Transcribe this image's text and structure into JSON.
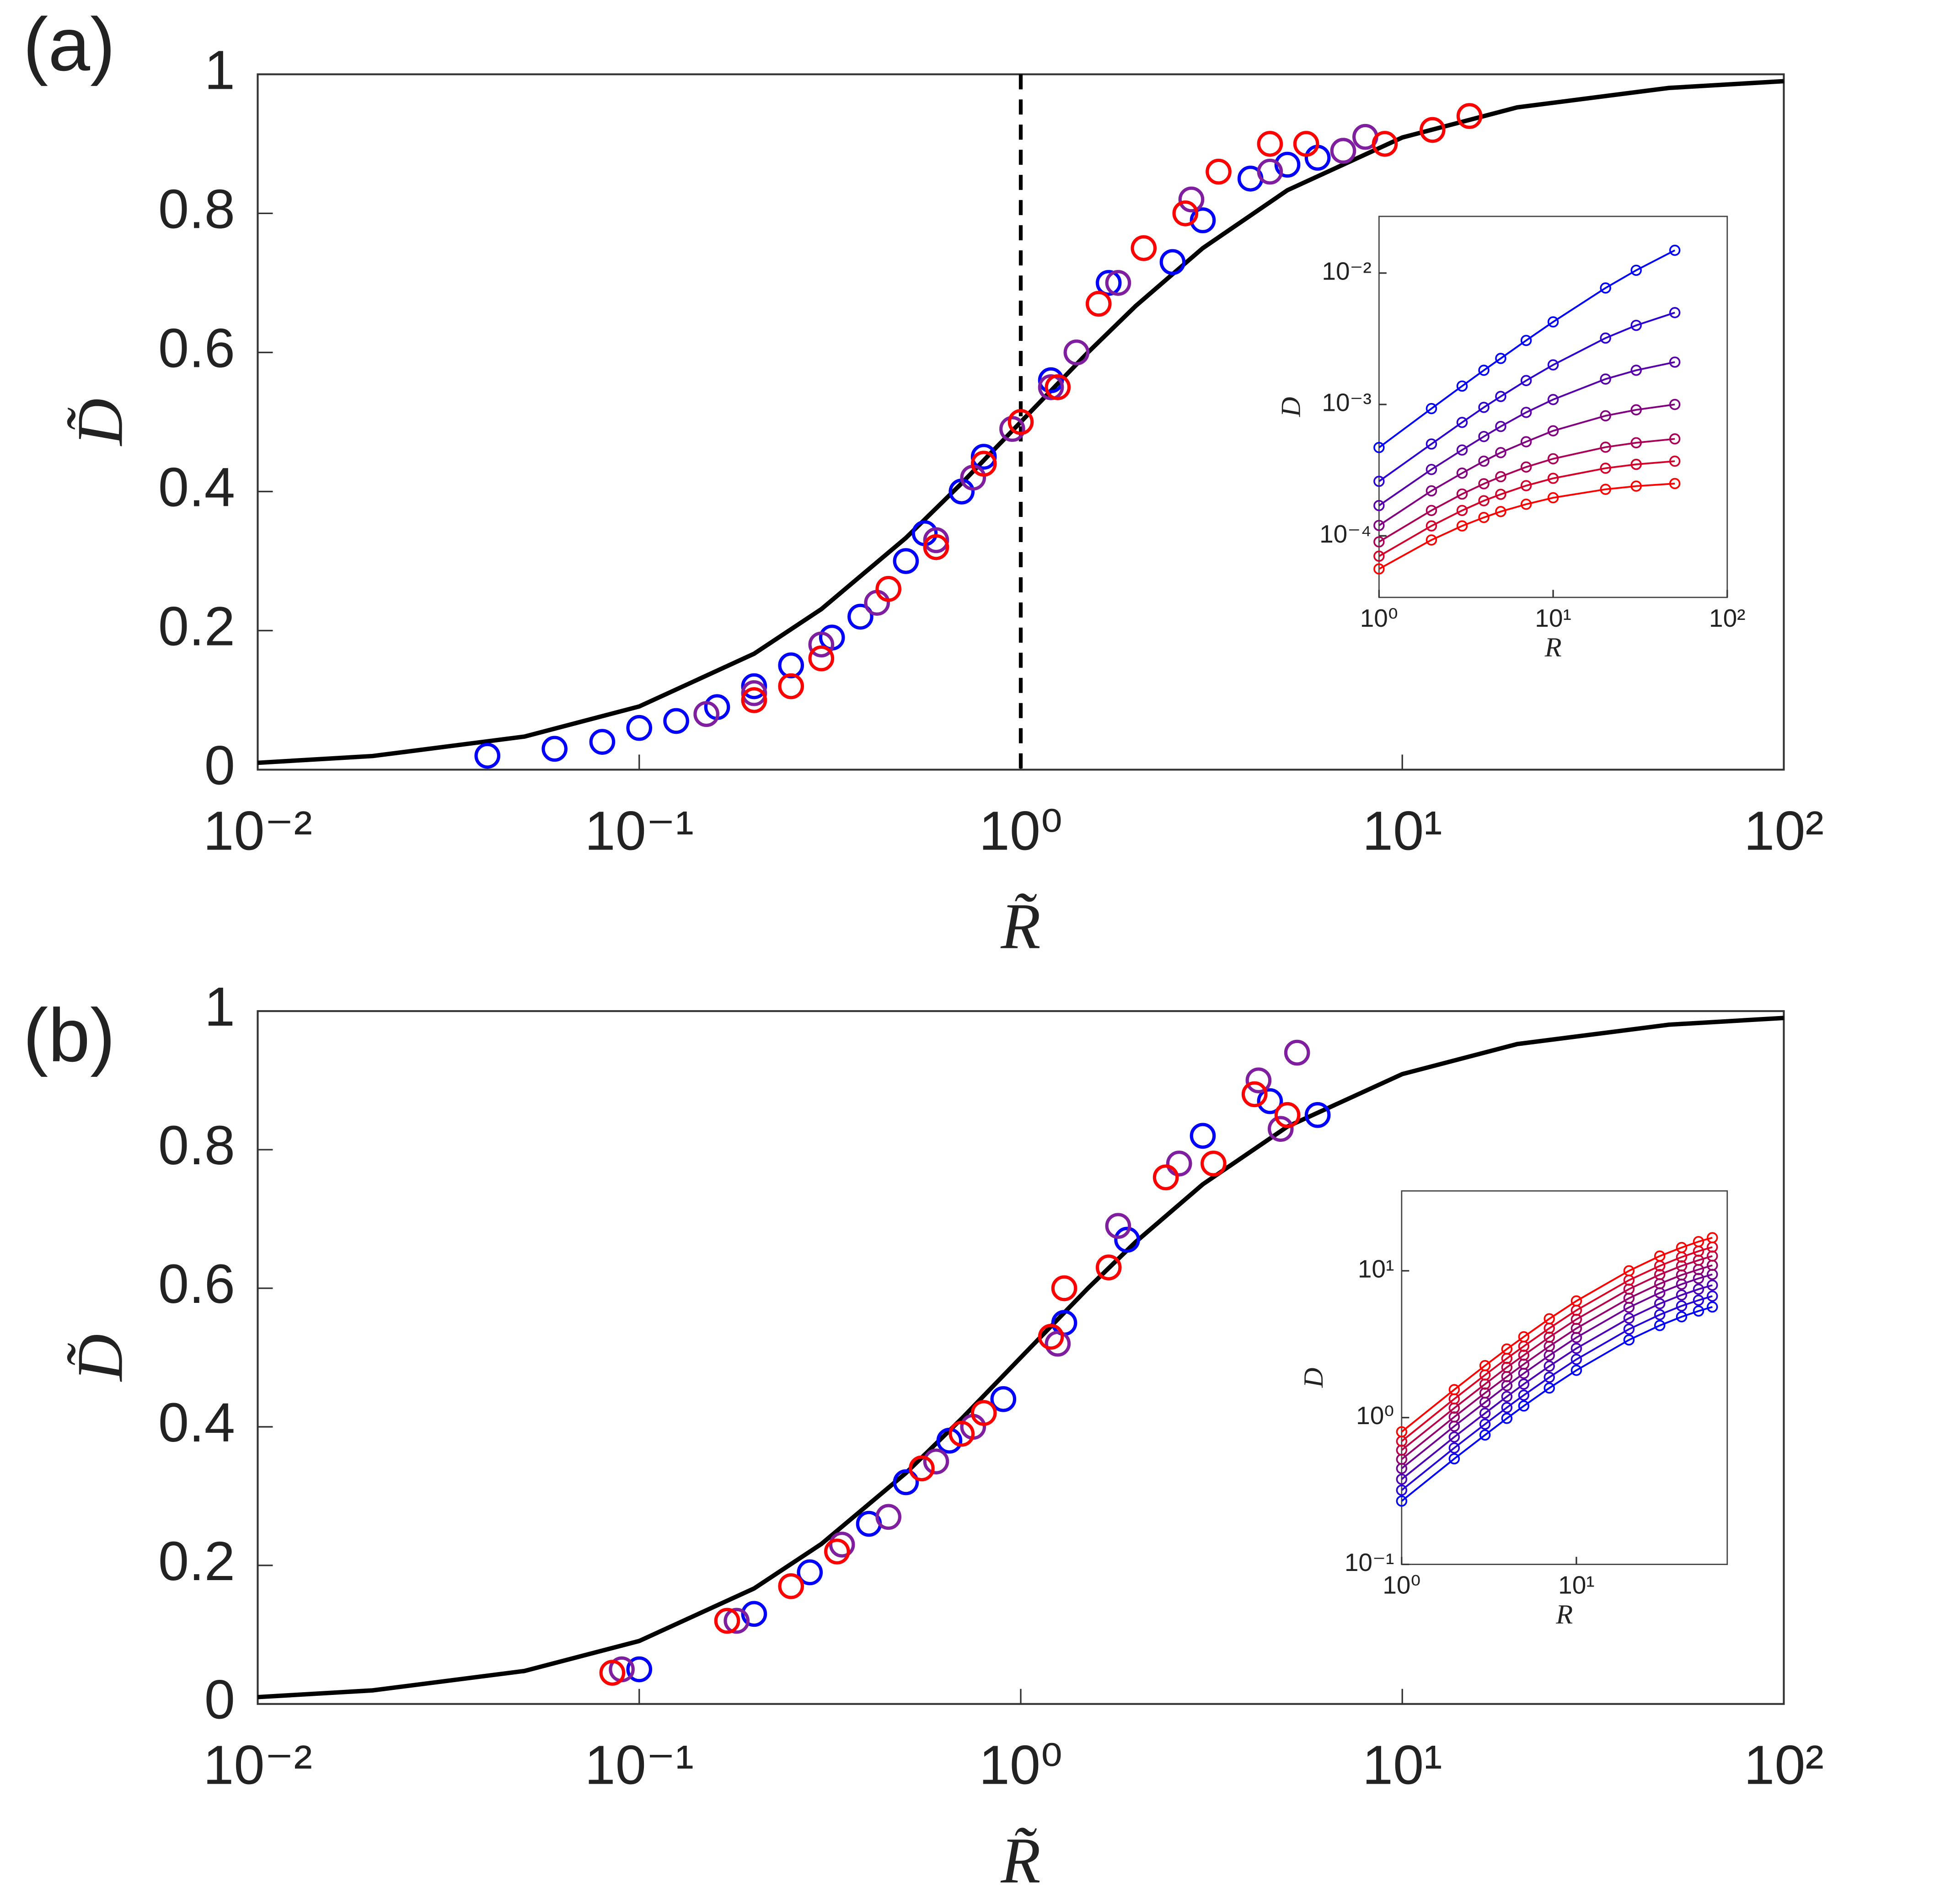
{
  "chart_data": [
    {
      "type": "scatter",
      "label": "(a)",
      "xlabel": "R̃",
      "ylabel": "D̃",
      "xscale": "log",
      "xlim": [
        0.01,
        100
      ],
      "ylim": [
        0,
        1
      ],
      "xticks": [
        {
          "value": 0.01,
          "label": "10⁻²"
        },
        {
          "value": 0.1,
          "label": "10⁻¹"
        },
        {
          "value": 1,
          "label": "10⁰"
        },
        {
          "value": 10,
          "label": "10¹"
        },
        {
          "value": 100,
          "label": "10²"
        }
      ],
      "yticks": [
        0,
        0.2,
        0.4,
        0.6,
        0.8,
        1
      ],
      "vline": 1,
      "fit": {
        "color": "#000000",
        "x": [
          0.01,
          0.02,
          0.05,
          0.1,
          0.2,
          0.3,
          0.5,
          0.7,
          1,
          1.5,
          2,
          3,
          5,
          10,
          20,
          50,
          100
        ],
        "values": [
          0.0099,
          0.0196,
          0.0476,
          0.0909,
          0.1667,
          0.2308,
          0.3333,
          0.4118,
          0.5,
          0.6,
          0.6667,
          0.75,
          0.8333,
          0.9091,
          0.9524,
          0.9804,
          0.9901
        ]
      },
      "series": [
        {
          "color": "#0000ff",
          "x": [
            0.04,
            0.06,
            0.08,
            0.1,
            0.125,
            0.16,
            0.2,
            0.25,
            0.32,
            0.38,
            0.5,
            0.56,
            0.7,
            0.8,
            1.2,
            1.7,
            2.5,
            3,
            4,
            5,
            6
          ],
          "values": [
            0.02,
            0.03,
            0.04,
            0.06,
            0.07,
            0.09,
            0.12,
            0.15,
            0.19,
            0.22,
            0.3,
            0.34,
            0.4,
            0.45,
            0.56,
            0.7,
            0.73,
            0.79,
            0.85,
            0.87,
            0.88
          ]
        },
        {
          "color": "#7f1f9f",
          "x": [
            0.15,
            0.2,
            0.3,
            0.42,
            0.6,
            0.75,
            0.95,
            1.2,
            1.4,
            1.8,
            2.8,
            4.5,
            7,
            8
          ],
          "values": [
            0.08,
            0.11,
            0.18,
            0.24,
            0.33,
            0.42,
            0.49,
            0.55,
            0.6,
            0.7,
            0.82,
            0.86,
            0.89,
            0.91
          ]
        },
        {
          "color": "#ff0000",
          "x": [
            0.2,
            0.25,
            0.3,
            0.45,
            0.6,
            0.8,
            1.0,
            1.25,
            1.6,
            2.1,
            2.7,
            3.3,
            4.5,
            5.6,
            9,
            12,
            15
          ],
          "values": [
            0.1,
            0.12,
            0.16,
            0.26,
            0.32,
            0.44,
            0.5,
            0.55,
            0.67,
            0.75,
            0.8,
            0.86,
            0.9,
            0.9,
            0.9,
            0.92,
            0.94
          ]
        }
      ]
    },
    {
      "type": "line",
      "xlabel": "R",
      "ylabel": "D",
      "xscale": "log",
      "yscale": "log",
      "markers": true,
      "xlim": [
        1,
        100
      ],
      "ylim": [
        3.4e-05,
        0.027
      ],
      "xticks": [
        {
          "value": 1,
          "label": "10⁰"
        },
        {
          "value": 10,
          "label": "10¹"
        },
        {
          "value": 100,
          "label": "10²"
        }
      ],
      "yticks": [
        {
          "value": 0.0001,
          "label": "10⁻⁴"
        },
        {
          "value": 0.001,
          "label": "10⁻³"
        },
        {
          "value": 0.01,
          "label": "10⁻²"
        }
      ],
      "x": [
        1,
        2,
        3,
        4,
        5,
        7,
        10,
        20,
        30,
        50
      ],
      "series": [
        {
          "color": "#0000ff",
          "values": [
            0.00047,
            0.00093,
            0.00138,
            0.00182,
            0.00224,
            0.00307,
            0.00425,
            0.0077,
            0.0105,
            0.0149
          ]
        },
        {
          "color": "#2a00d4",
          "values": [
            0.00026,
            0.0005,
            0.00073,
            0.00095,
            0.00115,
            0.00152,
            0.002,
            0.0032,
            0.004,
            0.005
          ]
        },
        {
          "color": "#5500aa",
          "values": [
            0.00017,
            0.00032,
            0.00045,
            0.00057,
            0.00068,
            0.00087,
            0.00109,
            0.00156,
            0.00182,
            0.0021
          ]
        },
        {
          "color": "#800080",
          "values": [
            0.00012,
            0.00022,
            0.0003,
            0.00037,
            0.00043,
            0.00052,
            0.00063,
            0.00082,
            0.00091,
            0.001
          ]
        },
        {
          "color": "#aa0055",
          "values": [
            9e-05,
            0.000156,
            0.000208,
            0.000249,
            0.000282,
            0.000334,
            0.000386,
            0.000473,
            0.000511,
            0.000547
          ]
        },
        {
          "color": "#d4002a",
          "values": [
            7e-05,
            0.000119,
            0.000156,
            0.000185,
            0.000207,
            0.000241,
            0.000274,
            0.000327,
            0.00035,
            0.00037
          ]
        },
        {
          "color": "#ff0000",
          "values": [
            5.6e-05,
            9.3e-05,
            0.000119,
            0.000138,
            0.000153,
            0.000174,
            0.000195,
            0.000226,
            0.000239,
            0.00025
          ]
        }
      ]
    },
    {
      "type": "scatter",
      "label": "(b)",
      "xlabel": "R̃",
      "ylabel": "D̃",
      "xscale": "log",
      "xlim": [
        0.01,
        100
      ],
      "ylim": [
        0,
        1
      ],
      "xticks": [
        {
          "value": 0.01,
          "label": "10⁻²"
        },
        {
          "value": 0.1,
          "label": "10⁻¹"
        },
        {
          "value": 1,
          "label": "10⁰"
        },
        {
          "value": 10,
          "label": "10¹"
        },
        {
          "value": 100,
          "label": "10²"
        }
      ],
      "yticks": [
        0,
        0.2,
        0.4,
        0.6,
        0.8,
        1
      ],
      "fit": {
        "color": "#000000",
        "x": [
          0.01,
          0.02,
          0.05,
          0.1,
          0.2,
          0.3,
          0.5,
          0.7,
          1,
          1.5,
          2,
          3,
          5,
          10,
          20,
          50,
          100
        ],
        "values": [
          0.0099,
          0.0196,
          0.0476,
          0.0909,
          0.1667,
          0.2308,
          0.3333,
          0.4118,
          0.5,
          0.6,
          0.6667,
          0.75,
          0.8333,
          0.9091,
          0.9524,
          0.9804,
          0.9901
        ]
      },
      "series": [
        {
          "color": "#0000ff",
          "x": [
            0.1,
            0.2,
            0.28,
            0.4,
            0.5,
            0.65,
            0.9,
            1.3,
            1.9,
            3,
            4.5,
            6
          ],
          "values": [
            0.05,
            0.13,
            0.19,
            0.26,
            0.32,
            0.38,
            0.44,
            0.55,
            0.67,
            0.82,
            0.87,
            0.85
          ]
        },
        {
          "color": "#7f1f9f",
          "x": [
            0.09,
            0.18,
            0.34,
            0.45,
            0.6,
            0.75,
            1.25,
            1.8,
            2.6,
            4.2,
            5.3,
            4.8
          ],
          "values": [
            0.05,
            0.12,
            0.23,
            0.27,
            0.35,
            0.4,
            0.52,
            0.69,
            0.78,
            0.9,
            0.94,
            0.83
          ]
        },
        {
          "color": "#ff0000",
          "x": [
            0.085,
            0.17,
            0.25,
            0.33,
            0.55,
            0.7,
            0.8,
            1.2,
            1.3,
            1.7,
            2.4,
            3.2,
            4.1,
            5
          ],
          "values": [
            0.045,
            0.12,
            0.17,
            0.22,
            0.34,
            0.39,
            0.42,
            0.53,
            0.6,
            0.63,
            0.76,
            0.78,
            0.88,
            0.85
          ]
        }
      ]
    },
    {
      "type": "line",
      "xlabel": "R",
      "ylabel": "D",
      "xscale": "log",
      "yscale": "log",
      "markers": true,
      "xlim": [
        1,
        73
      ],
      "ylim": [
        0.1,
        35
      ],
      "xticks": [
        {
          "value": 1,
          "label": "10⁰"
        },
        {
          "value": 10,
          "label": "10¹"
        }
      ],
      "yticks": [
        {
          "value": 0.1,
          "label": "10⁻¹"
        },
        {
          "value": 1,
          "label": "10⁰"
        },
        {
          "value": 10,
          "label": "10¹"
        }
      ],
      "x": [
        1,
        2,
        3,
        4,
        5,
        7,
        10,
        20,
        30,
        40,
        50,
        60
      ],
      "series": [
        {
          "color": "#0000ff",
          "values": [
            0.27,
            0.524,
            0.761,
            0.988,
            1.2,
            1.59,
            2.1,
            3.38,
            4.24,
            4.86,
            5.32,
            5.67
          ]
        },
        {
          "color": "#2400db",
          "values": [
            0.32,
            0.621,
            0.902,
            1.17,
            1.42,
            1.88,
            2.49,
            4.0,
            5.02,
            5.76,
            6.3,
            6.72
          ]
        },
        {
          "color": "#4900b6",
          "values": [
            0.38,
            0.737,
            1.07,
            1.39,
            1.69,
            2.24,
            2.96,
            4.75,
            5.97,
            6.84,
            7.49,
            7.98
          ]
        },
        {
          "color": "#6d0092",
          "values": [
            0.45,
            0.873,
            1.27,
            1.65,
            2.0,
            2.65,
            3.51,
            5.63,
            7.07,
            8.1,
            8.87,
            9.45
          ]
        },
        {
          "color": "#92006d",
          "values": [
            0.52,
            1.01,
            1.47,
            1.9,
            2.31,
            3.06,
            4.05,
            6.5,
            8.16,
            9.36,
            10.2,
            10.9
          ]
        },
        {
          "color": "#b60049",
          "values": [
            0.6,
            1.16,
            1.69,
            2.2,
            2.66,
            3.53,
            4.67,
            7.5,
            9.42,
            10.8,
            11.8,
            12.6
          ]
        },
        {
          "color": "#db0024",
          "values": [
            0.69,
            1.34,
            1.95,
            2.53,
            3.06,
            4.06,
            5.38,
            8.63,
            10.8,
            12.4,
            13.6,
            14.5
          ]
        },
        {
          "color": "#ff0000",
          "values": [
            0.8,
            1.55,
            2.26,
            2.93,
            3.55,
            4.71,
            6.23,
            10.0,
            12.6,
            14.4,
            15.8,
            16.8
          ]
        }
      ]
    }
  ]
}
